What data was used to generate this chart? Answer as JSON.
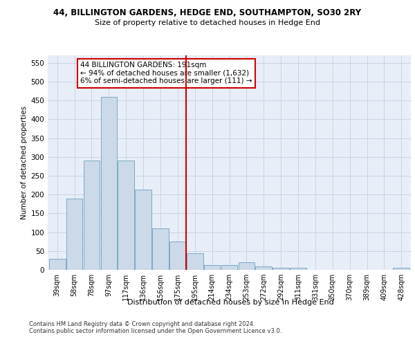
{
  "title1": "44, BILLINGTON GARDENS, HEDGE END, SOUTHAMPTON, SO30 2RY",
  "title2": "Size of property relative to detached houses in Hedge End",
  "xlabel": "Distribution of detached houses by size in Hedge End",
  "ylabel": "Number of detached properties",
  "categories": [
    "39sqm",
    "58sqm",
    "78sqm",
    "97sqm",
    "117sqm",
    "136sqm",
    "156sqm",
    "175sqm",
    "195sqm",
    "214sqm",
    "234sqm",
    "253sqm",
    "272sqm",
    "292sqm",
    "311sqm",
    "331sqm",
    "350sqm",
    "370sqm",
    "389sqm",
    "409sqm",
    "428sqm"
  ],
  "values": [
    30,
    190,
    290,
    460,
    290,
    213,
    110,
    75,
    45,
    13,
    12,
    21,
    10,
    5,
    5,
    0,
    0,
    0,
    0,
    0,
    5
  ],
  "bar_color": "#ccd9e8",
  "bar_edge_color": "#7aaac8",
  "vline_x": 7.5,
  "annotation_text": "44 BILLINGTON GARDENS: 191sqm\n← 94% of detached houses are smaller (1,632)\n6% of semi-detached houses are larger (111) →",
  "annotation_box_color": "#ffffff",
  "annotation_box_edge_color": "#cc0000",
  "footer": "Contains HM Land Registry data © Crown copyright and database right 2024.\nContains public sector information licensed under the Open Government Licence v3.0.",
  "ylim": [
    0,
    570
  ],
  "yticks": [
    0,
    50,
    100,
    150,
    200,
    250,
    300,
    350,
    400,
    450,
    500,
    550
  ],
  "grid_color": "#c8d4e4",
  "plot_bg_color": "#e8eef8"
}
